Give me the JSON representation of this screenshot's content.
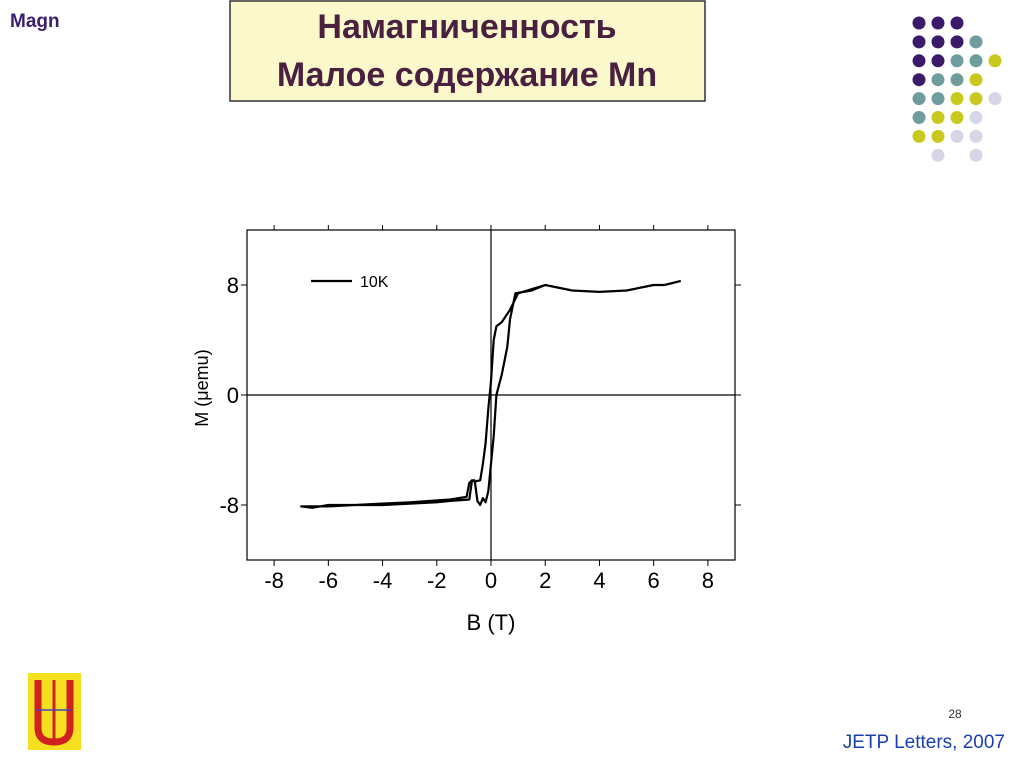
{
  "slide": {
    "corner_label": "Magn",
    "title_line1": "Намагниченность",
    "title_line2": "Малое содержание Mn",
    "page_number": "28",
    "source": "JETP Letters, 2007"
  },
  "chart_data": {
    "type": "line",
    "x_label": "B (T)",
    "y_label": "M (μemu)",
    "xlim": [
      -9,
      9
    ],
    "ylim": [
      -12,
      12
    ],
    "xticks": [
      -8,
      -6,
      -4,
      -2,
      0,
      2,
      4,
      6,
      8
    ],
    "yticks": [
      -8,
      0,
      8
    ],
    "zero_lines": true,
    "legend": "top-left",
    "x": [
      7,
      6.4,
      6,
      5,
      4,
      3,
      2,
      1,
      0.7,
      0.4,
      0.2,
      0.1,
      0,
      -0.1,
      -0.2,
      -0.3,
      -0.4,
      -0.6,
      -0.7,
      -0.8,
      -1.5,
      -2,
      -3,
      -4,
      -6,
      -6.6,
      -7,
      -7,
      -6,
      -4,
      -3,
      -1.5,
      -0.9,
      -0.8,
      -0.7,
      -0.6,
      -0.5,
      -0.4,
      -0.3,
      -0.2,
      -0.1,
      0,
      0.1,
      0.2,
      0.4,
      0.6,
      0.7,
      0.9,
      1.5,
      2,
      3,
      4,
      5,
      6,
      6.4,
      7
    ],
    "series": [
      {
        "name": "10K",
        "color": "#000000",
        "values": [
          8.3,
          8.0,
          8.0,
          7.6,
          7.5,
          7.6,
          8.0,
          7.4,
          6.2,
          5.3,
          5.0,
          4.0,
          1.0,
          -1.0,
          -3.5,
          -5.0,
          -6.2,
          -6.3,
          -6.2,
          -7.6,
          -7.7,
          -7.8,
          -7.9,
          -8.0,
          -8.0,
          -8.2,
          -8.1,
          -8.1,
          -8.1,
          -7.9,
          -7.8,
          -7.6,
          -7.4,
          -6.4,
          -6.2,
          -6.2,
          -7.7,
          -8.0,
          -7.5,
          -7.8,
          -7.0,
          -5.0,
          -3.0,
          0.0,
          1.5,
          3.5,
          5.5,
          7.4,
          7.6,
          8.0,
          7.6,
          7.5,
          7.6,
          8.0,
          8.0,
          8.3
        ]
      }
    ]
  }
}
